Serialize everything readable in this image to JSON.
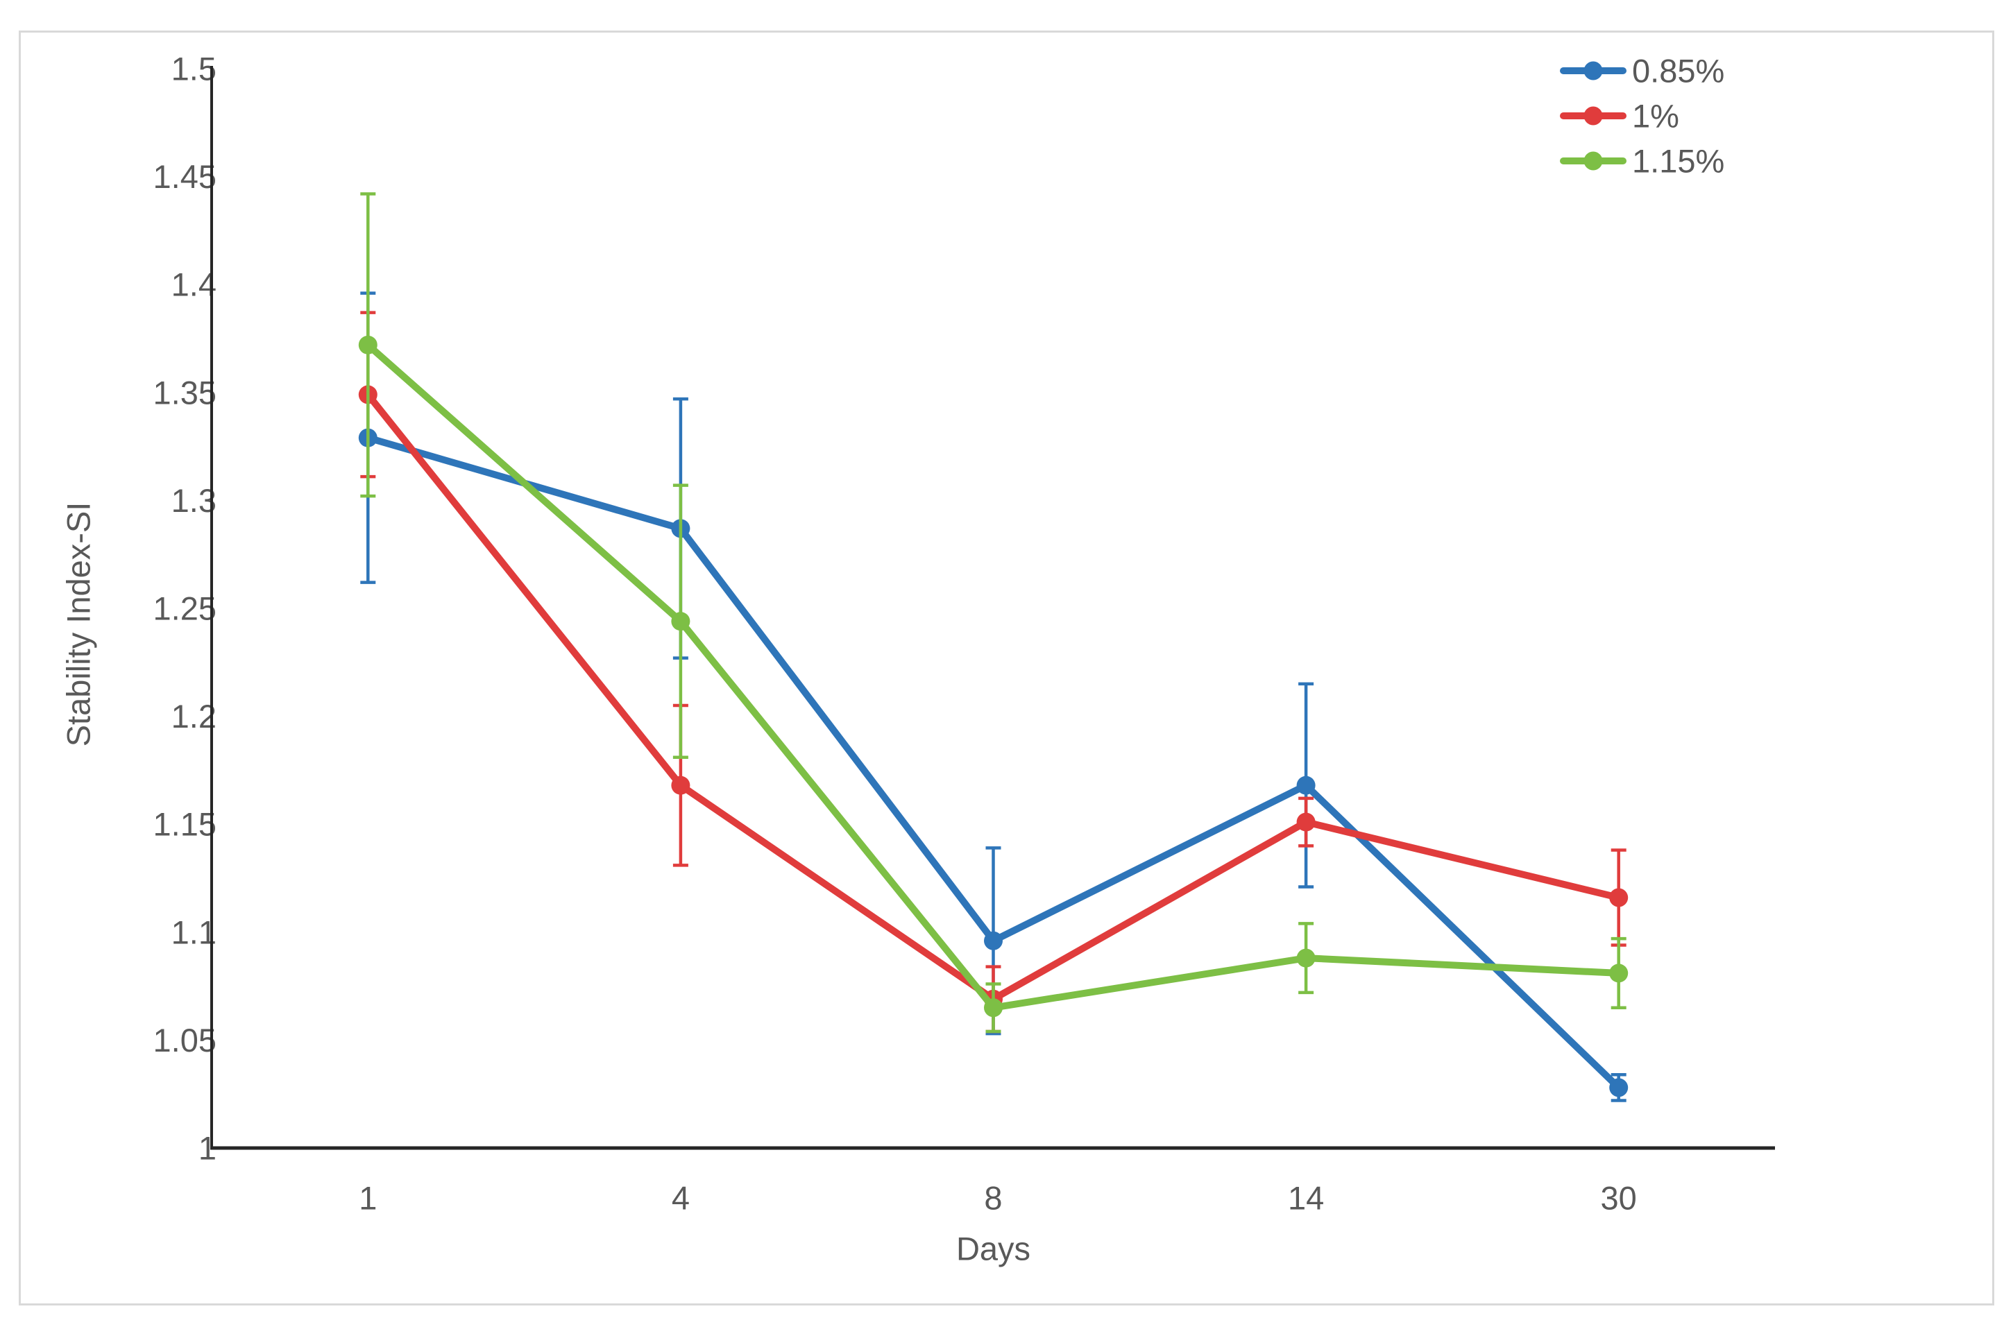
{
  "figure": {
    "background": "#ffffff",
    "border_color": "#d9d9d9",
    "axis_line_color": "#262626",
    "label_color": "#595959"
  },
  "chart_data": {
    "type": "line",
    "title": "",
    "xlabel": "Days",
    "ylabel": "Stability Index-SI",
    "x_categories": [
      "1",
      "4",
      "8",
      "14",
      "30"
    ],
    "x_values": [
      1,
      4,
      8,
      14,
      30
    ],
    "ylim": [
      1.0,
      1.5
    ],
    "ytick_step": 0.05,
    "ytick_labels": [
      "1",
      "1.05",
      "1.1",
      "1.15",
      "1.2",
      "1.25",
      "1.3",
      "1.35",
      "1.4",
      "1.45",
      "1.5"
    ],
    "grid": false,
    "error_bars": true,
    "legend_position": "top-right",
    "series": [
      {
        "name": "0.85%",
        "color": "#2E75B9",
        "values": [
          1.329,
          1.287,
          1.096,
          1.168,
          1.028
        ],
        "errors": [
          0.067,
          0.06,
          0.043,
          0.047,
          0.006
        ]
      },
      {
        "name": "1%",
        "color": "#E03C3C",
        "values": [
          1.349,
          1.168,
          1.069,
          1.151,
          1.116
        ],
        "errors": [
          0.038,
          0.037,
          0.015,
          0.011,
          0.022
        ]
      },
      {
        "name": "1.15%",
        "color": "#7DBF45",
        "values": [
          1.372,
          1.244,
          1.065,
          1.088,
          1.081
        ],
        "errors": [
          0.07,
          0.063,
          0.011,
          0.016,
          0.016
        ]
      }
    ]
  }
}
